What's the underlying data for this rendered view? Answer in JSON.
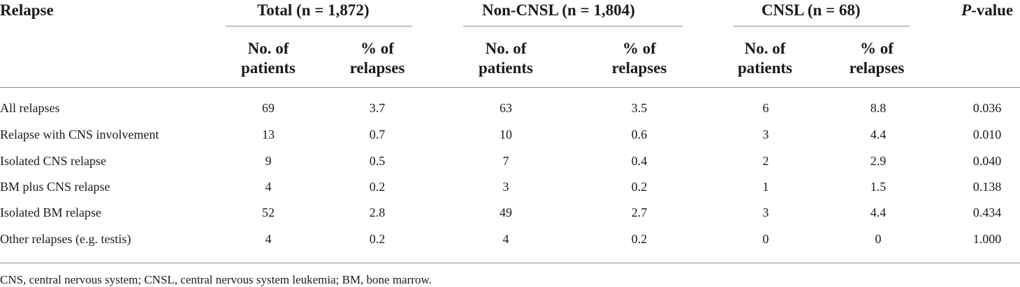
{
  "table": {
    "group_headers": {
      "relapse": "Relapse",
      "total": "Total (n = 1,872)",
      "noncnsl": "Non-CNSL (n = 1,804)",
      "cnsl": "CNSL (n = 68)",
      "pvalue_italic": "P",
      "pvalue_rest": "-value"
    },
    "sub_headers": {
      "no_line1": "No. of",
      "no_line2": "patients",
      "pct_line1": "% of",
      "pct_line2": "relapses"
    },
    "rows": [
      {
        "label": "All relapses",
        "total_no": "69",
        "total_pct": "3.7",
        "non_no": "63",
        "non_pct": "3.5",
        "cnsl_no": "6",
        "cnsl_pct": "8.8",
        "p": "0.036"
      },
      {
        "label": "Relapse with CNS involvement",
        "total_no": "13",
        "total_pct": "0.7",
        "non_no": "10",
        "non_pct": "0.6",
        "cnsl_no": "3",
        "cnsl_pct": "4.4",
        "p": "0.010"
      },
      {
        "label": "Isolated CNS relapse",
        "total_no": "9",
        "total_pct": "0.5",
        "non_no": "7",
        "non_pct": "0.4",
        "cnsl_no": "2",
        "cnsl_pct": "2.9",
        "p": "0.040"
      },
      {
        "label": "BM plus CNS relapse",
        "total_no": "4",
        "total_pct": "0.2",
        "non_no": "3",
        "non_pct": "0.2",
        "cnsl_no": "1",
        "cnsl_pct": "1.5",
        "p": "0.138"
      },
      {
        "label": "Isolated BM relapse",
        "total_no": "52",
        "total_pct": "2.8",
        "non_no": "49",
        "non_pct": "2.7",
        "cnsl_no": "3",
        "cnsl_pct": "4.4",
        "p": "0.434"
      },
      {
        "label": "Other relapses (e.g. testis)",
        "total_no": "4",
        "total_pct": "0.2",
        "non_no": "4",
        "non_pct": "0.2",
        "cnsl_no": "0",
        "cnsl_pct": "0",
        "p": "1.000"
      }
    ],
    "footnote": "CNS, central nervous system; CNSL, central nervous system leukemia; BM, bone marrow."
  }
}
